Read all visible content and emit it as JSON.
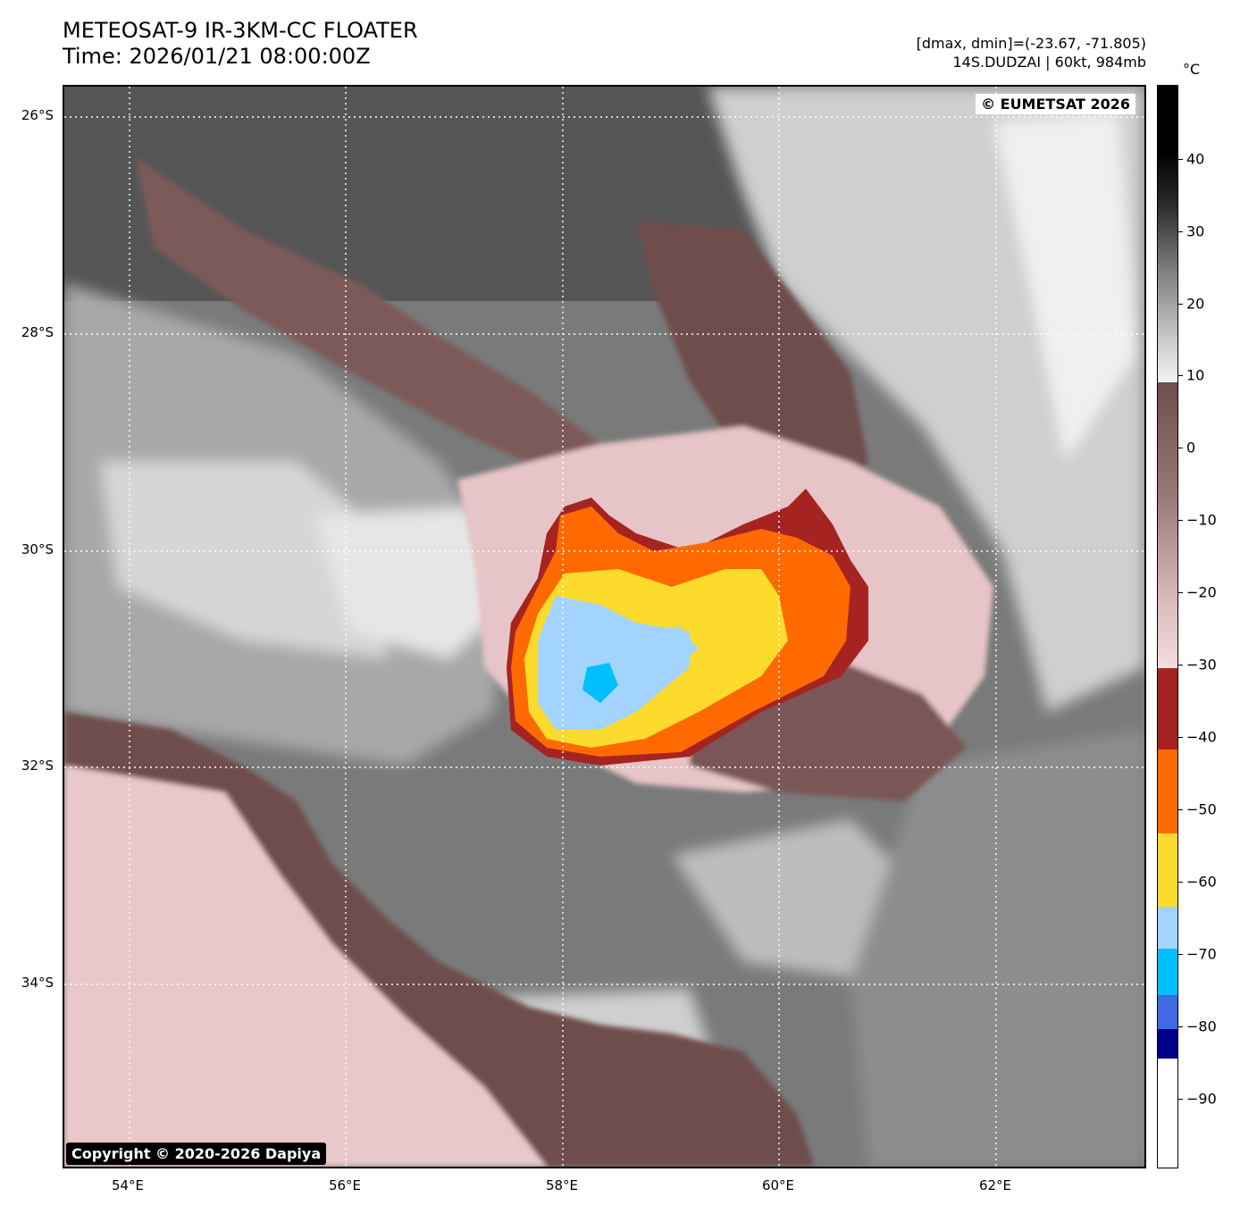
{
  "header": {
    "title_line1": "METEOSAT-9 IR-3KM-CC FLOATER",
    "title_line2": "Time: 2026/01/21 08:00:00Z",
    "range_line": "[dmax, dmin]=(-23.67, -71.805)",
    "storm_line": "14S.DUDZAI | 60kt, 984mb"
  },
  "map": {
    "watermark": "© EUMETSAT 2026",
    "copyright": "Copyright © 2020-2026 Dapiya",
    "lat_labels": [
      "26°S",
      "28°S",
      "30°S",
      "32°S",
      "34°S"
    ],
    "lon_labels": [
      "54°E",
      "56°E",
      "58°E",
      "60°E",
      "62°E"
    ],
    "storm_name": "14S.DUDZAI",
    "intensity_kt": 60,
    "pressure_mb": 984
  },
  "colorbar": {
    "unit": "°C",
    "ticks": [
      "40",
      "30",
      "20",
      "10",
      "0",
      "−10",
      "−20",
      "−30",
      "−40",
      "−50",
      "−60",
      "−70",
      "−80",
      "−90"
    ],
    "range": [
      -100,
      50
    ],
    "colors": {
      "warm_black": "#000000",
      "warm_grey": "#9a9a9a",
      "near_white": "#f0f0f0",
      "brown": "#6f4e4e",
      "pink": "#f2d7d9",
      "dark_red": "#a52422",
      "orange": "#ff6a00",
      "yellow": "#fddb2d",
      "light_blue": "#a3d3ff",
      "cyan": "#00bfff",
      "royal_blue": "#4169e1",
      "navy": "#00008b",
      "white": "#ffffff"
    }
  }
}
